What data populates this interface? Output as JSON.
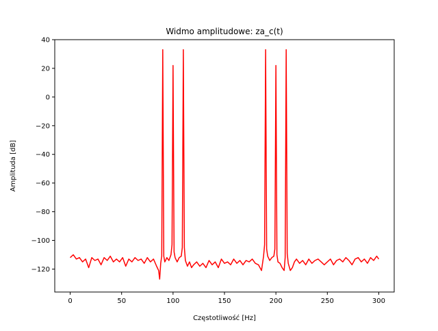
{
  "chart_data": {
    "type": "line",
    "title": "Widmo amplitudowe: za_c(t)",
    "xlabel": "Częstotliwość [Hz]",
    "ylabel": "Amplituda [dB]",
    "xlim": [
      -15,
      315
    ],
    "ylim": [
      -136,
      40
    ],
    "xticks": [
      0,
      50,
      100,
      150,
      200,
      250,
      300
    ],
    "xtick_labels": [
      "0",
      "50",
      "100",
      "150",
      "200",
      "250",
      "300"
    ],
    "yticks": [
      40,
      20,
      0,
      -20,
      -40,
      -60,
      -80,
      -100,
      -120
    ],
    "ytick_labels": [
      "40",
      "20",
      "0",
      "−20",
      "−40",
      "−60",
      "−80",
      "−100",
      "−120"
    ],
    "grid": false,
    "legend": "none",
    "series": [
      {
        "color": "#ff0000",
        "x": [
          0,
          3,
          6,
          9,
          12,
          15,
          18,
          21,
          24,
          27,
          30,
          33,
          36,
          39,
          42,
          45,
          48,
          51,
          54,
          57,
          60,
          63,
          66,
          69,
          72,
          75,
          78,
          81,
          84,
          86,
          87,
          88,
          89,
          90,
          91,
          92,
          94,
          96,
          98,
          99,
          100,
          101,
          102,
          104,
          106,
          108,
          109,
          110,
          111,
          112,
          114,
          116,
          118,
          120,
          123,
          126,
          129,
          132,
          135,
          138,
          141,
          144,
          147,
          150,
          153,
          156,
          159,
          162,
          165,
          168,
          171,
          174,
          177,
          180,
          183,
          186,
          188,
          189,
          190,
          191,
          192,
          194,
          196,
          198,
          199,
          200,
          201,
          202,
          204,
          206,
          208,
          209,
          210,
          211,
          212,
          214,
          216,
          218,
          220,
          223,
          226,
          229,
          232,
          235,
          238,
          241,
          244,
          247,
          250,
          253,
          256,
          259,
          262,
          265,
          268,
          271,
          274,
          277,
          280,
          283,
          286,
          289,
          292,
          295,
          298,
          300
        ],
        "y": [
          -112,
          -110,
          -113,
          -112,
          -115,
          -113,
          -119,
          -112,
          -114,
          -113,
          -117,
          -112,
          -114,
          -111,
          -115,
          -113,
          -115,
          -112,
          -118,
          -113,
          -115,
          -112,
          -114,
          -113,
          -116,
          -112,
          -115,
          -113,
          -118,
          -121,
          -127,
          -116,
          -111,
          33,
          -111,
          -115,
          -112,
          -114,
          -110,
          -103,
          22,
          -108,
          -112,
          -115,
          -112,
          -111,
          -105,
          33,
          -105,
          -114,
          -118,
          -115,
          -119,
          -117,
          -115,
          -118,
          -116,
          -119,
          -114,
          -117,
          -115,
          -119,
          -113,
          -116,
          -115,
          -117,
          -113,
          -116,
          -114,
          -117,
          -114,
          -115,
          -113,
          -116,
          -117,
          -121,
          -111,
          -103,
          33,
          -106,
          -111,
          -114,
          -112,
          -111,
          -106,
          22,
          -110,
          -115,
          -116,
          -119,
          -121,
          -112,
          33,
          -109,
          -116,
          -121,
          -119,
          -115,
          -113,
          -116,
          -114,
          -117,
          -113,
          -116,
          -114,
          -113,
          -115,
          -117,
          -115,
          -113,
          -117,
          -114,
          -113,
          -115,
          -112,
          -114,
          -117,
          -113,
          -112,
          -115,
          -113,
          -116,
          -112,
          -114,
          -111,
          -113
        ]
      }
    ]
  }
}
